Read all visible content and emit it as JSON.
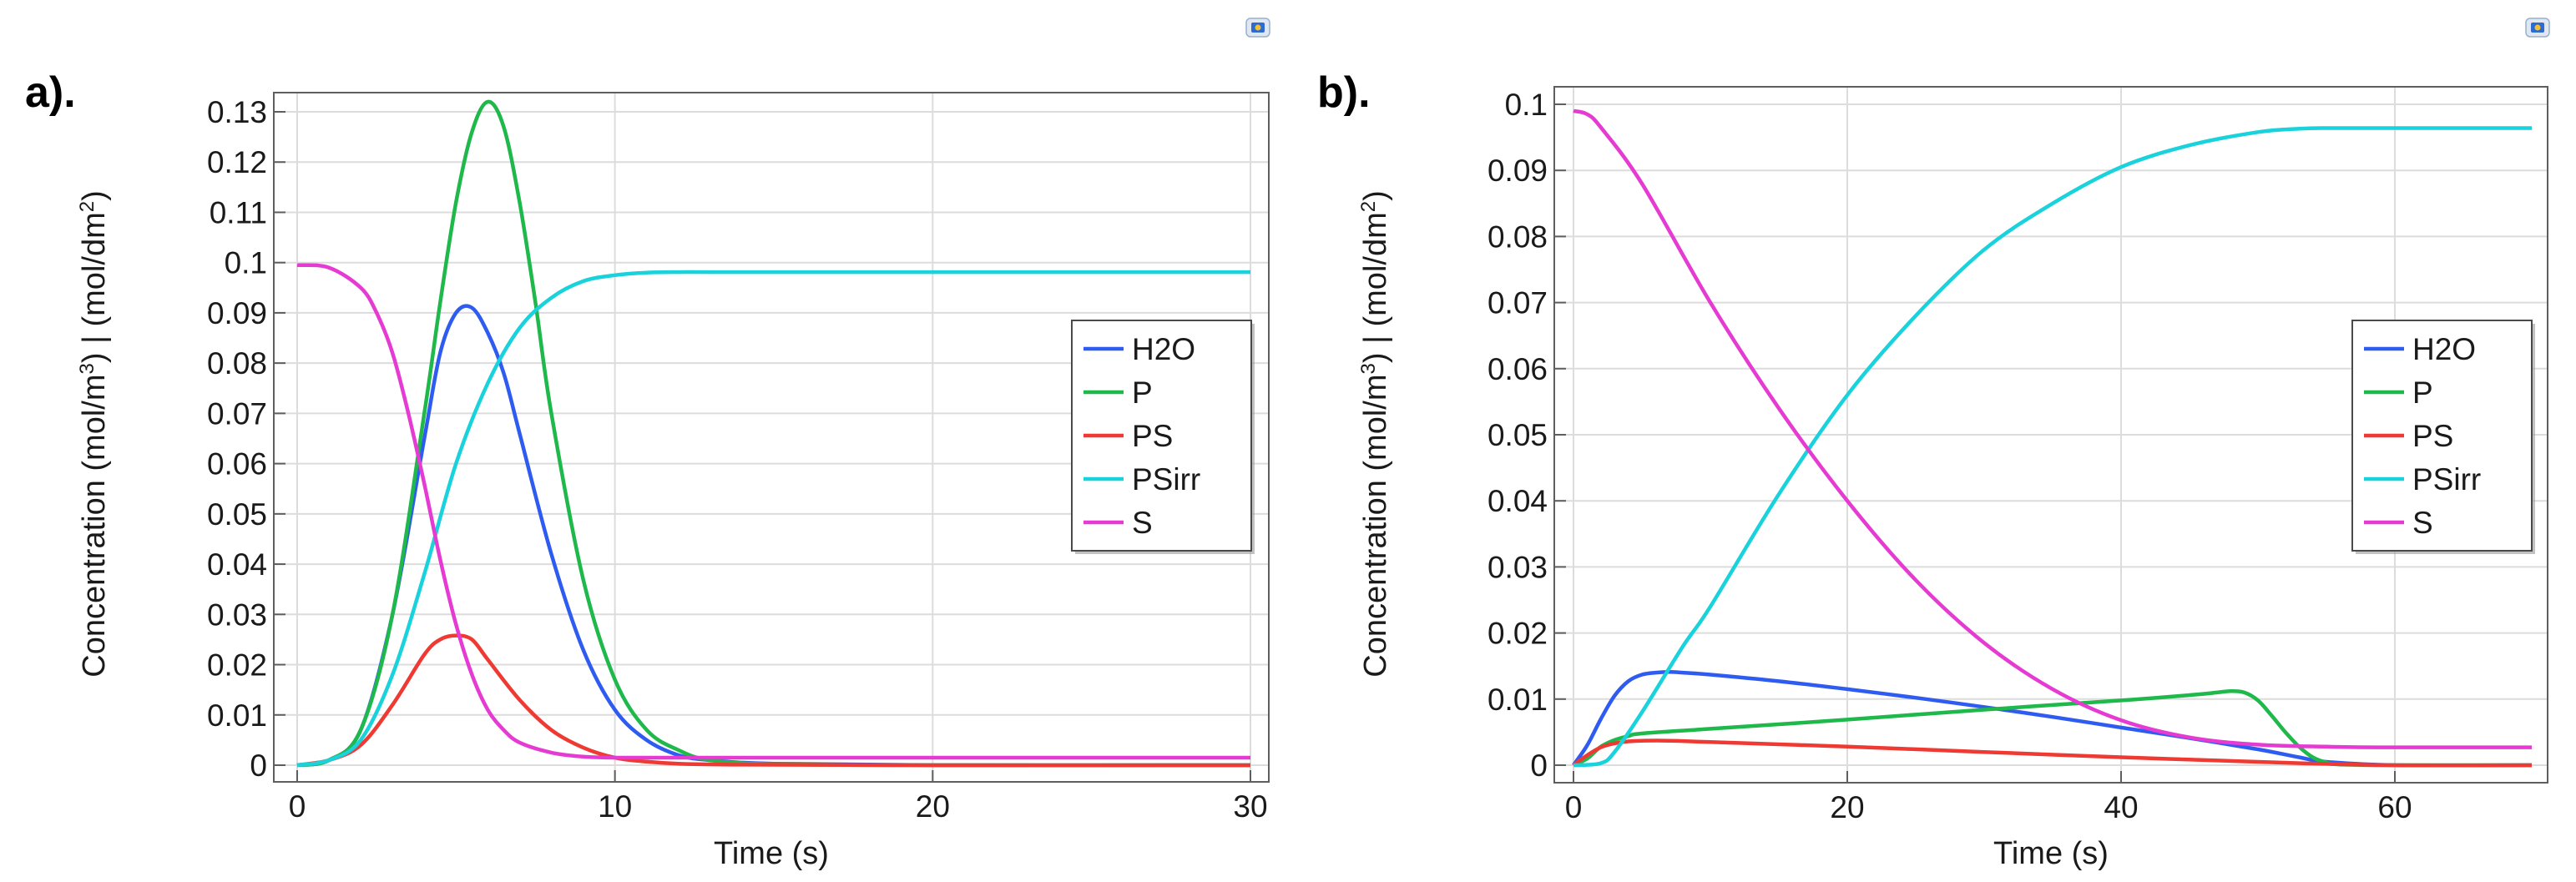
{
  "chart_data": [
    {
      "type": "line",
      "panel_label": "a).",
      "xlabel": "Time (s)",
      "ylabel": {
        "prefix": "Concentration (mol/m",
        "sup1": "3",
        "mid": ") |  (mol/dm",
        "sup2": "2",
        "suffix": ")"
      },
      "xlim": [
        0,
        30
      ],
      "ylim": [
        0,
        0.13
      ],
      "xticks": [
        "0",
        "10",
        "20",
        "30"
      ],
      "yticks": [
        "0",
        "0.01",
        "0.02",
        "0.03",
        "0.04",
        "0.05",
        "0.06",
        "0.07",
        "0.08",
        "0.09",
        "0.1",
        "0.11",
        "0.12",
        "0.13"
      ],
      "grid": true,
      "legend_position": "right",
      "series": [
        {
          "name": "H2O",
          "color": "#2f5cf0",
          "x": [
            0,
            1,
            2,
            3,
            4,
            4.5,
            5,
            5.5,
            6,
            6.5,
            7,
            8,
            9,
            10,
            11,
            12,
            13,
            15,
            20,
            30
          ],
          "y": [
            0,
            0.001,
            0.007,
            0.03,
            0.065,
            0.082,
            0.09,
            0.091,
            0.086,
            0.078,
            0.066,
            0.042,
            0.023,
            0.011,
            0.005,
            0.002,
            0.001,
            0.0003,
            0,
            0
          ]
        },
        {
          "name": "P",
          "color": "#1fb84a",
          "x": [
            0,
            1,
            2,
            3,
            4,
            4.5,
            5,
            5.5,
            6,
            6.5,
            7,
            7.5,
            8,
            9,
            10,
            11,
            12,
            13,
            15,
            20,
            30
          ],
          "y": [
            0,
            0.001,
            0.007,
            0.03,
            0.07,
            0.092,
            0.112,
            0.126,
            0.132,
            0.127,
            0.112,
            0.092,
            0.07,
            0.037,
            0.017,
            0.007,
            0.003,
            0.001,
            0.0002,
            0,
            0
          ]
        },
        {
          "name": "PS",
          "color": "#ee3a33",
          "x": [
            0,
            1,
            2,
            3,
            4,
            4.5,
            5,
            5.5,
            6,
            7,
            8,
            9,
            10,
            11,
            12,
            14,
            20,
            30
          ],
          "y": [
            0,
            0.001,
            0.004,
            0.012,
            0.022,
            0.025,
            0.0258,
            0.025,
            0.021,
            0.013,
            0.007,
            0.0035,
            0.0015,
            0.0007,
            0.0003,
            0.0001,
            0,
            0
          ]
        },
        {
          "name": "PSirr",
          "color": "#19d2db",
          "x": [
            0,
            1,
            2,
            3,
            4,
            5,
            6,
            7,
            8,
            9,
            10,
            11,
            12,
            13,
            15,
            20,
            30
          ],
          "y": [
            0,
            0.001,
            0.005,
            0.018,
            0.038,
            0.06,
            0.076,
            0.087,
            0.093,
            0.0963,
            0.0975,
            0.098,
            0.0981,
            0.0981,
            0.0981,
            0.0981,
            0.0981
          ]
        },
        {
          "name": "S",
          "color": "#e63bd3",
          "x": [
            0,
            1,
            2,
            2.5,
            3,
            3.5,
            4,
            4.5,
            5,
            5.5,
            6,
            6.5,
            7,
            8,
            9,
            10,
            12,
            15,
            20,
            30
          ],
          "y": [
            0.0995,
            0.099,
            0.095,
            0.09,
            0.082,
            0.07,
            0.056,
            0.041,
            0.028,
            0.018,
            0.011,
            0.007,
            0.0045,
            0.0025,
            0.0017,
            0.0015,
            0.0015,
            0.0015,
            0.0015,
            0.0015
          ]
        }
      ]
    },
    {
      "type": "line",
      "panel_label": "b).",
      "xlabel": "Time (s)",
      "ylabel": {
        "prefix": "Concentration (mol/m",
        "sup1": "3",
        "mid": ") |  (mol/dm",
        "sup2": "2",
        "suffix": ")"
      },
      "xlim": [
        0,
        70
      ],
      "ylim": [
        0,
        0.1
      ],
      "xticks": [
        "0",
        "20",
        "40",
        "60"
      ],
      "yticks": [
        "0",
        "0.01",
        "0.02",
        "0.03",
        "0.04",
        "0.05",
        "0.06",
        "0.07",
        "0.08",
        "0.09",
        "0.1"
      ],
      "grid": true,
      "legend_position": "right",
      "series": [
        {
          "name": "H2O",
          "color": "#2f5cf0",
          "x": [
            0,
            1,
            2,
            3,
            4,
            5,
            6,
            7,
            8,
            10,
            15,
            20,
            25,
            30,
            35,
            40,
            45,
            50,
            53,
            55,
            60,
            70
          ],
          "y": [
            0,
            0.003,
            0.007,
            0.0105,
            0.0127,
            0.0137,
            0.014,
            0.0141,
            0.014,
            0.0137,
            0.0127,
            0.0115,
            0.0102,
            0.0088,
            0.0073,
            0.0057,
            0.0041,
            0.0024,
            0.0012,
            0.0005,
            0,
            0
          ]
        },
        {
          "name": "P",
          "color": "#1fb84a",
          "x": [
            0,
            1,
            2,
            3,
            4,
            5,
            10,
            20,
            30,
            40,
            45,
            47,
            48,
            49,
            50,
            51,
            52,
            53,
            54,
            55,
            56,
            60,
            70
          ],
          "y": [
            0,
            0.001,
            0.0028,
            0.0038,
            0.0044,
            0.0048,
            0.0055,
            0.0069,
            0.0084,
            0.0098,
            0.0106,
            0.011,
            0.0112,
            0.011,
            0.0098,
            0.0075,
            0.005,
            0.0028,
            0.0012,
            0.0004,
            0.0001,
            0,
            0
          ]
        },
        {
          "name": "PS",
          "color": "#ee3a33",
          "x": [
            0,
            1,
            2,
            3,
            4,
            5,
            7,
            10,
            20,
            30,
            40,
            50,
            55,
            60,
            70
          ],
          "y": [
            0,
            0.0015,
            0.0027,
            0.0033,
            0.0036,
            0.0037,
            0.0037,
            0.0035,
            0.0028,
            0.002,
            0.0012,
            0.0005,
            0.0002,
            0,
            0
          ]
        },
        {
          "name": "PSirr",
          "color": "#19d2db",
          "x": [
            0,
            2,
            3,
            5,
            8,
            10,
            15,
            20,
            25,
            30,
            35,
            40,
            45,
            50,
            53,
            55,
            60,
            70
          ],
          "y": [
            0,
            0.0003,
            0.002,
            0.008,
            0.018,
            0.024,
            0.041,
            0.056,
            0.068,
            0.078,
            0.085,
            0.0905,
            0.0938,
            0.0958,
            0.0963,
            0.0964,
            0.0964,
            0.0964
          ]
        },
        {
          "name": "S",
          "color": "#e63bd3",
          "x": [
            0,
            1,
            2,
            5,
            10,
            15,
            20,
            25,
            30,
            35,
            40,
            45,
            50,
            55,
            60,
            70
          ],
          "y": [
            0.099,
            0.0985,
            0.0965,
            0.088,
            0.07,
            0.054,
            0.04,
            0.028,
            0.0185,
            0.0115,
            0.0068,
            0.0042,
            0.0031,
            0.0028,
            0.0027,
            0.0027
          ]
        }
      ]
    }
  ]
}
